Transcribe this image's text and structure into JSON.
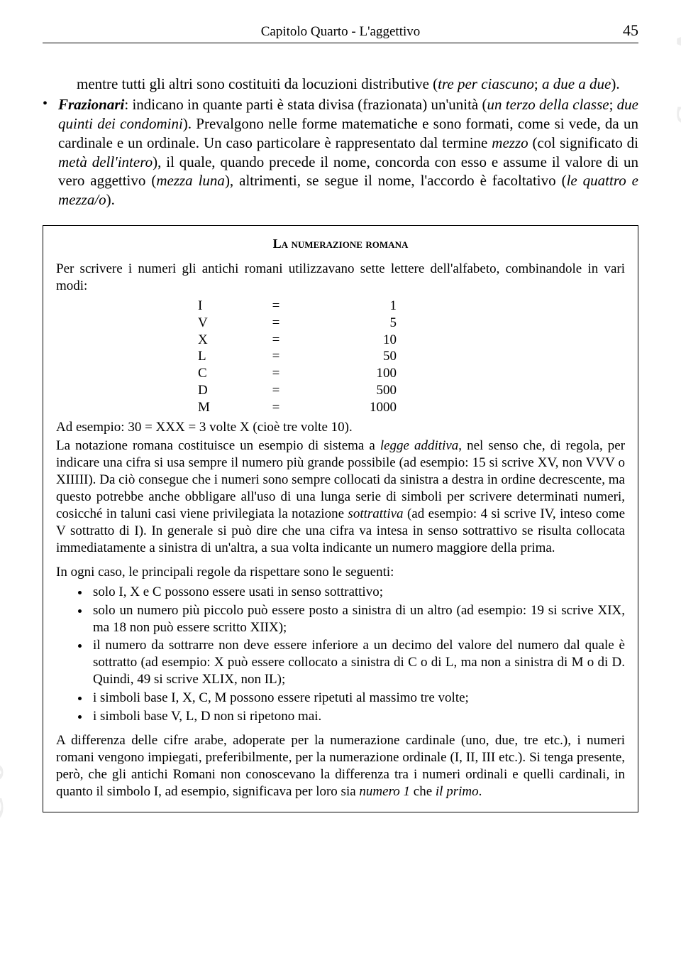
{
  "header": {
    "chapter": "Capitolo Quarto - L'aggettivo",
    "page_number": "45"
  },
  "intro": {
    "line1_a": "mentre tutti gli altri sono costituiti da locuzioni distributive (",
    "line1_it": "tre per ciascuno",
    "line1_b": "; ",
    "line1_it2": "a due a due",
    "line1_c": ")."
  },
  "fraz": {
    "label": "Frazionari",
    "a": ": indicano in quante parti è stata divisa (frazionata) un'unità (",
    "it1": "un terzo della classe",
    "b": "; ",
    "it2": "due quinti dei condomini",
    "c": "). Prevalgono nelle forme matematiche e sono formati, come si vede, da un cardinale e un ordinale. Un caso particolare è rappresentato dal termine ",
    "it3": "mezzo",
    "d": " (col significato di ",
    "it4": "metà dell'intero",
    "e": "), il quale, quando precede il nome, concorda con esso e assume il valore di un vero aggettivo (",
    "it5": "mezza luna",
    "f": "), altrimenti, se segue il nome, l'accordo è facoltativo (",
    "it6": "le quattro e mezza/o",
    "g": ")."
  },
  "box": {
    "title": "La numerazione romana",
    "intro": "Per scrivere i numeri gli antichi romani utilizzavano sette lettere dell'alfabeto, combinandole in vari modi:",
    "numbers": [
      {
        "sym": "I",
        "eq": "=",
        "val": "1"
      },
      {
        "sym": "V",
        "eq": "=",
        "val": "5"
      },
      {
        "sym": "X",
        "eq": "=",
        "val": "10"
      },
      {
        "sym": "L",
        "eq": "=",
        "val": "50"
      },
      {
        "sym": "C",
        "eq": "=",
        "val": "100"
      },
      {
        "sym": "D",
        "eq": "=",
        "val": "500"
      },
      {
        "sym": "M",
        "eq": "=",
        "val": "1000"
      }
    ],
    "example": "Ad esempio: 30 = XXX = 3 volte X (cioè tre volte 10).",
    "p1_a": "La notazione romana costituisce un esempio di sistema a ",
    "p1_it": "legge additiva",
    "p1_b": ", nel senso che, di regola, per indicare una cifra si usa sempre il numero più grande possibile (ad esempio: 15 si scrive XV, non VVV o XIIIII). Da ciò consegue che i numeri sono sempre collocati da sinistra a destra in ordine decrescente, ma questo potrebbe anche obbligare all'uso di una lunga serie di simboli per scrivere determinati numeri, cosicché in taluni casi viene privilegiata la notazione ",
    "p1_it2": "sottrattiva",
    "p1_c": " (ad esempio: 4 si scrive IV, inteso come V sottratto di I). In generale si può dire che una cifra va intesa in senso sottrattivo se risulta collocata immediatamente a sinistra di un'altra, a sua volta indicante un numero maggiore della prima.",
    "p2": "In ogni caso, le principali regole da rispettare sono le seguenti:",
    "rules": [
      "solo I, X e C possono essere usati in senso sottrattivo;",
      "solo un numero più piccolo può essere posto a sinistra di un altro (ad esempio: 19 si scrive XIX, ma 18 non può essere scritto XIIX);",
      "il numero da sottrarre non deve essere inferiore a un decimo del valore del numero dal quale è sottratto (ad esempio: X può essere collocato a sinistra di C o di L, ma non a sinistra di M o di D. Quindi, 49 si scrive XLIX, non IL);",
      "i simboli base I, X, C, M possono essere ripetuti al massimo tre volte;",
      "i simboli base V, L, D non si ripetono mai."
    ],
    "p3_a": "A differenza delle cifre arabe, adoperate per la numerazione cardinale (uno, due, tre etc.), i numeri romani vengono impiegati, preferibilmente, per la numerazione ordinale (I, II, III etc.). Si tenga presente, però, che gli antichi Romani non conoscevano la differenza tra i numeri ordinali e quelli cardinali, in quanto il simbolo I, ad esempio, significava per loro sia ",
    "p3_it1": "numero 1",
    "p3_b": " che ",
    "p3_it2": "il primo",
    "p3_c": "."
  },
  "watermark": "S.p.A.",
  "watermark2": "C o"
}
